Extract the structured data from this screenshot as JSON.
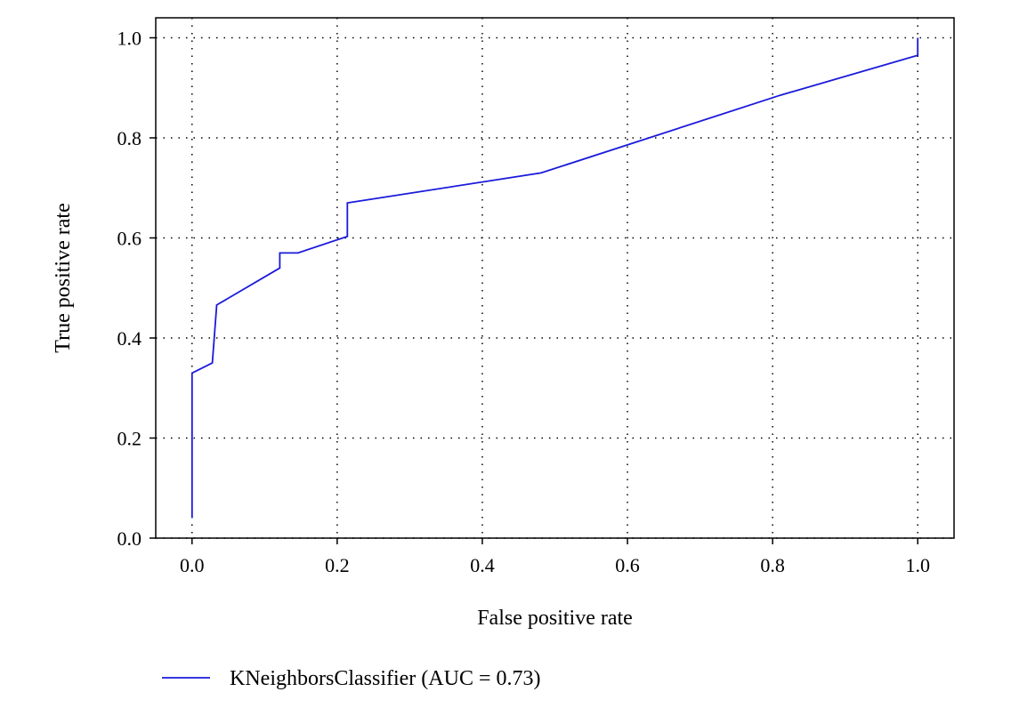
{
  "chart_data": {
    "type": "line",
    "title": "",
    "xlabel": "False positive rate",
    "ylabel": "True positive rate",
    "xlim": [
      -0.05,
      1.05
    ],
    "ylim": [
      0.0,
      1.04
    ],
    "xticks": [
      "0.0",
      "0.2",
      "0.4",
      "0.6",
      "0.8",
      "1.0"
    ],
    "yticks": [
      "0.0",
      "0.2",
      "0.4",
      "0.6",
      "0.8",
      "1.0"
    ],
    "grid": true,
    "legend_position": "bottom-left, below plot",
    "series": [
      {
        "name": "KNeighborsClassifier (AUC = 0.73)",
        "color": "#1a1adb",
        "x": [
          0.0,
          0.0,
          0.0,
          0.028,
          0.028,
          0.034,
          0.121,
          0.121,
          0.146,
          0.214,
          0.214,
          0.481,
          0.81,
          1.0,
          1.0,
          1.0
        ],
        "y": [
          0.04,
          0.33,
          0.33,
          0.35,
          0.35,
          0.466,
          0.54,
          0.57,
          0.57,
          0.603,
          0.67,
          0.73,
          0.885,
          0.965,
          0.99,
          1.0
        ]
      }
    ]
  }
}
